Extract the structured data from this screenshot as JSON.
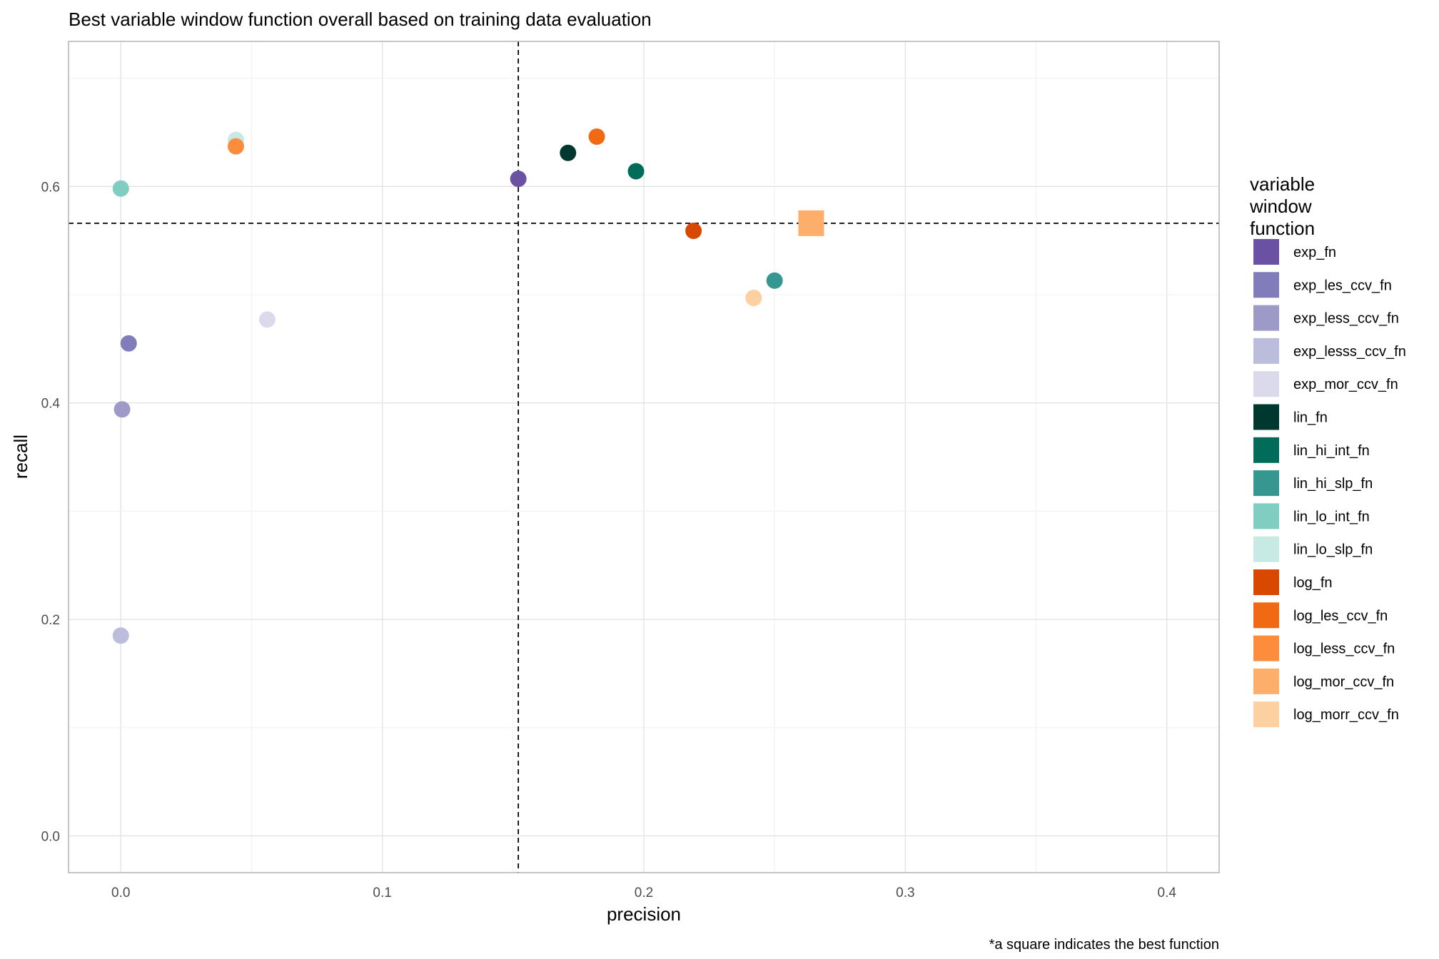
{
  "chart_data": {
    "type": "scatter",
    "title": "Best variable window function overall based on training data evaluation",
    "xlabel": "precision",
    "ylabel": "recall",
    "caption": "*a square indicates the best function",
    "xlim": [
      -0.02,
      0.42
    ],
    "ylim": [
      -0.034,
      0.734
    ],
    "x_ticks": [
      0.0,
      0.1,
      0.2,
      0.3,
      0.4
    ],
    "x_tick_labels": [
      "0.0",
      "0.1",
      "0.2",
      "0.3",
      "0.4"
    ],
    "y_ticks": [
      0.0,
      0.2,
      0.4,
      0.6
    ],
    "y_tick_labels": [
      "0.0",
      "0.2",
      "0.4",
      "0.6"
    ],
    "grid": true,
    "reference_lines": {
      "vline_x": 0.152,
      "hline_y": 0.566
    },
    "legend": {
      "title_lines": [
        "variable",
        "window",
        "function"
      ],
      "placement": "right"
    },
    "series": [
      {
        "name": "exp_fn",
        "color": "#6A51A3",
        "x": 0.152,
        "y": 0.607,
        "shape": "circle"
      },
      {
        "name": "exp_les_ccv_fn",
        "color": "#807DBA",
        "x": 0.003,
        "y": 0.455,
        "shape": "circle"
      },
      {
        "name": "exp_less_ccv_fn",
        "color": "#9E9AC8",
        "x": 0.0005,
        "y": 0.394,
        "shape": "circle"
      },
      {
        "name": "exp_lesss_ccv_fn",
        "color": "#BCBDDC",
        "x": 0.0,
        "y": 0.185,
        "shape": "circle"
      },
      {
        "name": "exp_mor_ccv_fn",
        "color": "#DADAEB",
        "x": 0.056,
        "y": 0.477,
        "shape": "circle"
      },
      {
        "name": "lin_fn",
        "color": "#00382F",
        "x": 0.171,
        "y": 0.631,
        "shape": "circle"
      },
      {
        "name": "lin_hi_int_fn",
        "color": "#016C59",
        "x": 0.197,
        "y": 0.614,
        "shape": "circle"
      },
      {
        "name": "lin_hi_slp_fn",
        "color": "#35978F",
        "x": 0.25,
        "y": 0.513,
        "shape": "circle"
      },
      {
        "name": "lin_lo_int_fn",
        "color": "#80CDC1",
        "x": 0.0,
        "y": 0.598,
        "shape": "circle"
      },
      {
        "name": "lin_lo_slp_fn",
        "color": "#C7EAE5",
        "x": 0.044,
        "y": 0.643,
        "shape": "circle"
      },
      {
        "name": "log_fn",
        "color": "#D94801",
        "x": 0.219,
        "y": 0.559,
        "shape": "circle"
      },
      {
        "name": "log_les_ccv_fn",
        "color": "#F16913",
        "x": 0.182,
        "y": 0.646,
        "shape": "circle"
      },
      {
        "name": "log_less_ccv_fn",
        "color": "#FD8D3C",
        "x": 0.044,
        "y": 0.637,
        "shape": "circle"
      },
      {
        "name": "log_mor_ccv_fn",
        "color": "#FDAE6B",
        "x": 0.264,
        "y": 0.566,
        "shape": "square"
      },
      {
        "name": "log_morr_ccv_fn",
        "color": "#FDD0A2",
        "x": 0.242,
        "y": 0.497,
        "shape": "circle"
      }
    ]
  }
}
